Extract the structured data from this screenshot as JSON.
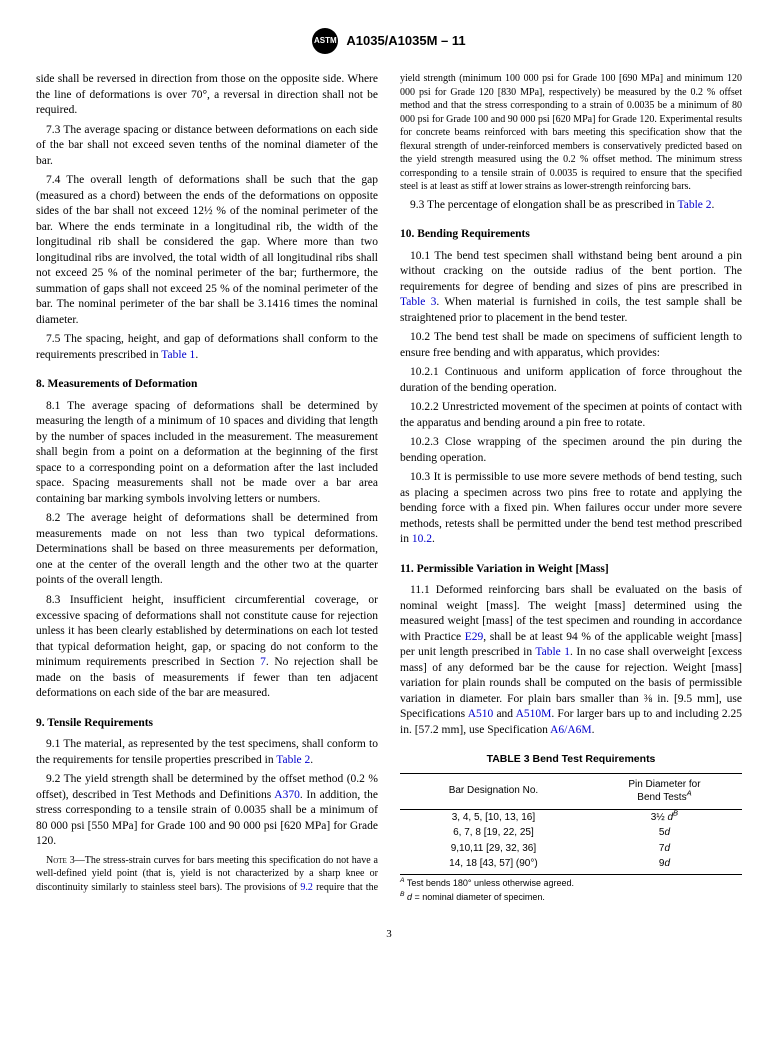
{
  "header": {
    "logo_text": "ASTM",
    "doc_id": "A1035/A1035M – 11"
  },
  "col1": {
    "p_intro": "side shall be reversed in direction from those on the opposite side. Where the line of deformations is over 70°, a reversal in direction shall not be required.",
    "p73": "7.3 The average spacing or distance between deformations on each side of the bar shall not exceed seven tenths of the nominal diameter of the bar.",
    "p74": "7.4 The overall length of deformations shall be such that the gap (measured as a chord) between the ends of the deformations on opposite sides of the bar shall not exceed 12½ % of the nominal perimeter of the bar. Where the ends terminate in a longitudinal rib, the width of the longitudinal rib shall be considered the gap. Where more than two longitudinal ribs are involved, the total width of all longitudinal ribs shall not exceed 25 % of the nominal perimeter of the bar; furthermore, the summation of gaps shall not exceed 25 % of the nominal perimeter of the bar. The nominal perimeter of the bar shall be 3.1416 times the nominal diameter.",
    "p75_a": "7.5 The spacing, height, and gap of deformations shall conform to the requirements prescribed in ",
    "p75_link": "Table 1",
    "p75_b": ".",
    "h8": "8. Measurements of Deformation",
    "p81": "8.1 The average spacing of deformations shall be determined by measuring the length of a minimum of 10 spaces and dividing that length by the number of spaces included in the measurement. The measurement shall begin from a point on a deformation at the beginning of the first space to a corresponding point on a deformation after the last included space. Spacing measurements shall not be made over a bar area containing bar marking symbols involving letters or numbers.",
    "p82": "8.2 The average height of deformations shall be determined from measurements made on not less than two typical deformations. Determinations shall be based on three measurements per deformation, one at the center of the overall length and the other two at the quarter points of the overall length.",
    "p83_a": "8.3 Insufficient height, insufficient circumferential coverage, or excessive spacing of deformations shall not constitute cause for rejection unless it has been clearly established by determinations on each lot tested that typical deformation height, gap, or spacing do not conform to the minimum requirements prescribed in Section ",
    "p83_link": "7",
    "p83_b": ". No rejection shall be made on the basis of measurements if fewer than ten adjacent deformations on each side of the bar are measured.",
    "h9": "9. Tensile Requirements",
    "p91_a": "9.1 The material, as represented by the test specimens, shall conform to the requirements for tensile properties prescribed in ",
    "p91_link": "Table 2",
    "p91_b": ".",
    "p92_a": "9.2 The yield strength shall be determined by the offset method (0.2 % offset), described in Test Methods and Definitions ",
    "p92_link": "A370",
    "p92_b": ". In addition, the stress corresponding to a tensile strain of 0.0035 shall be a minimum of 80 000 psi [550 MPa] for Grade 100 and 90 000 psi [620 MPa] for Grade 120.",
    "n3_label": "Note 3—",
    "n3_a": "The stress-strain curves for bars meeting this specification do not have a well-defined yield point (that is, yield is not characterized by a sharp knee or discontinuity similarly to stainless steel bars). The provisions of ",
    "n3_link": "9.2",
    "n3_b": " require that the yield strength (minimum 100 000 psi for Grade 100 [690 MPa] and minimum 120 000 psi for Grade 120 [830"
  },
  "col2": {
    "n3_cont": "MPa], respectively) be measured by the 0.2 % offset method and that the stress corresponding to a strain of 0.0035 be a minimum of 80 000 psi for Grade 100 and 90 000 psi [620 MPa] for Grade 120. Experimental results for concrete beams reinforced with bars meeting this specification show that the flexural strength of under-reinforced members is conservatively predicted based on the yield strength measured using the 0.2 % offset method. The minimum stress corresponding to a tensile strain of 0.0035 is required to ensure that the specified steel is at least as stiff at lower strains as lower-strength reinforcing bars.",
    "p93_a": "9.3 The percentage of elongation shall be as prescribed in ",
    "p93_link": "Table 2",
    "p93_b": ".",
    "h10": "10. Bending Requirements",
    "p101_a": "10.1 The bend test specimen shall withstand being bent around a pin without cracking on the outside radius of the bent portion. The requirements for degree of bending and sizes of pins are prescribed in ",
    "p101_link": "Table 3",
    "p101_b": ". When material is furnished in coils, the test sample shall be straightened prior to placement in the bend tester.",
    "p102": "10.2 The bend test shall be made on specimens of sufficient length to ensure free bending and with apparatus, which provides:",
    "p1021": "10.2.1 Continuous and uniform application of force throughout the duration of the bending operation.",
    "p1022": "10.2.2 Unrestricted movement of the specimen at points of contact with the apparatus and bending around a pin free to rotate.",
    "p1023": "10.2.3 Close wrapping of the specimen around the pin during the bending operation.",
    "p103_a": "10.3 It is permissible to use more severe methods of bend testing, such as placing a specimen across two pins free to rotate and applying the bending force with a fixed pin. When failures occur under more severe methods, retests shall be permitted under the bend test method prescribed in ",
    "p103_link": "10.2",
    "p103_b": ".",
    "h11": "11. Permissible Variation in Weight [Mass]",
    "p111_a": "11.1 Deformed reinforcing bars shall be evaluated on the basis of nominal weight [mass]. The weight [mass] determined using the measured weight [mass] of the test specimen and rounding in accordance with Practice ",
    "p111_l1": "E29",
    "p111_b": ", shall be at least 94 % of the applicable weight [mass] per unit length prescribed in ",
    "p111_l2": "Table 1",
    "p111_c": ". In no case shall overweight [excess mass] of any deformed bar be the cause for rejection. Weight [mass] variation for plain rounds shall be computed on the basis of permissible variation in diameter. For plain bars smaller than ⅜ in. [9.5 mm], use Specifications ",
    "p111_l3": "A510",
    "p111_d": " and ",
    "p111_l4": "A510M",
    "p111_e": ". For larger bars up to and including 2.25 in. [57.2 mm], use Specification ",
    "p111_l5": "A6/A6M",
    "p111_f": "."
  },
  "table3": {
    "title": "TABLE 3 Bend Test Requirements",
    "th1": "Bar Designation No.",
    "th2_a": "Pin Diameter for",
    "th2_b": "Bend Tests",
    "th2_sup": "A",
    "rows": [
      {
        "c1": "3, 4, 5, [10, 13, 16]",
        "c2a": "3½ ",
        "c2i": "d",
        "c2sup": "B"
      },
      {
        "c1": "6, 7, 8 [19, 22, 25]",
        "c2a": "5",
        "c2i": "d",
        "c2sup": ""
      },
      {
        "c1": "9,10,11 [29, 32, 36]",
        "c2a": "7",
        "c2i": "d",
        "c2sup": ""
      },
      {
        "c1": "14, 18 [43, 57] (90°)",
        "c2a": "9",
        "c2i": "d",
        "c2sup": ""
      }
    ],
    "noteA_sup": "A",
    "noteA": " Test bends 180° unless otherwise agreed.",
    "noteB_sup": "B",
    "noteB_i": " d",
    "noteB": " = nominal diameter of specimen."
  },
  "page": "3"
}
